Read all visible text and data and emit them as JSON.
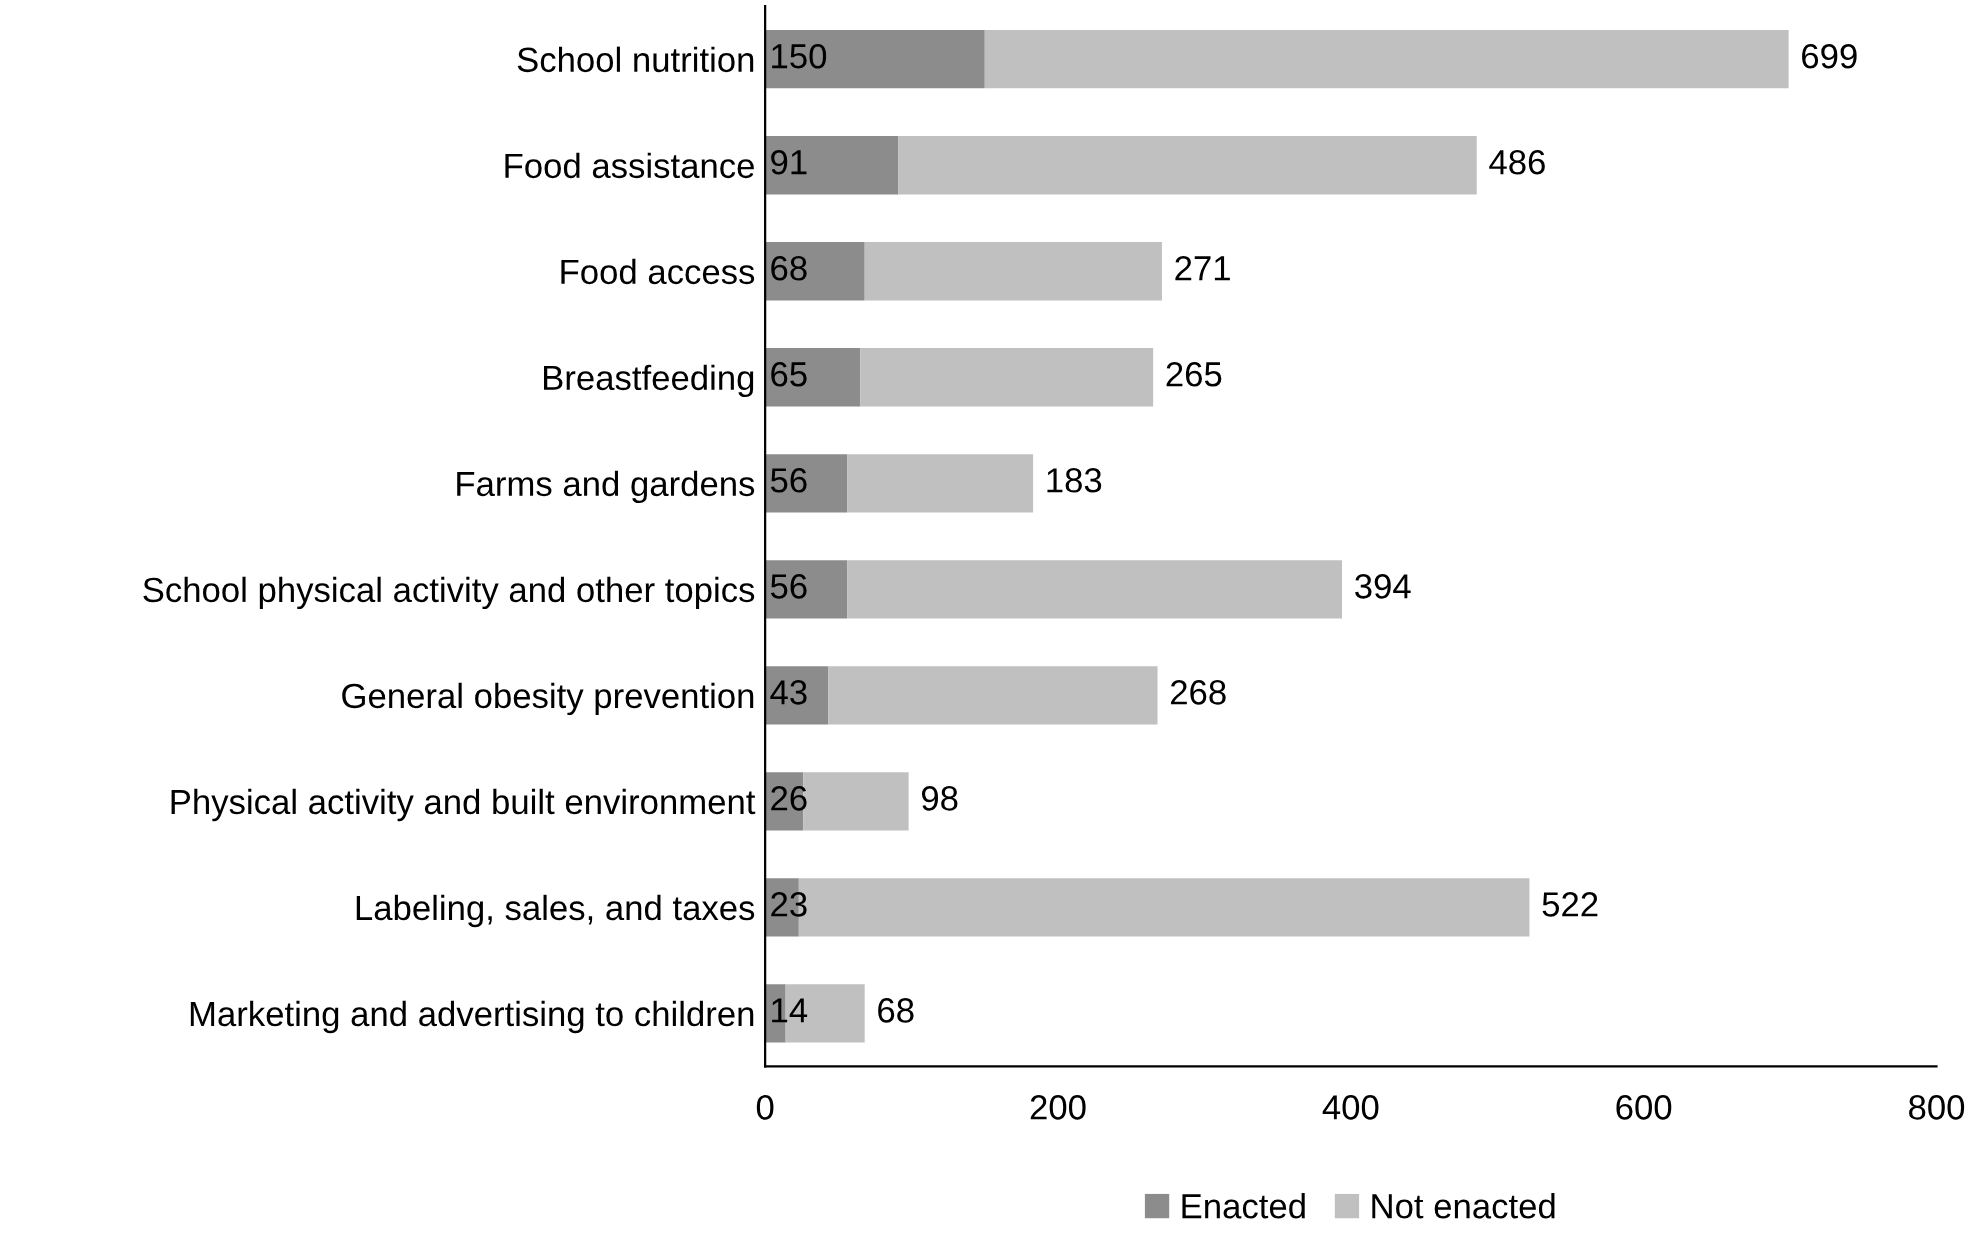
{
  "chart_data": {
    "type": "bar",
    "orientation": "horizontal",
    "stacked": true,
    "categories": [
      "School nutrition",
      "Food assistance",
      "Food access",
      "Breastfeeding",
      "Farms and gardens",
      "School physical activity and other topics",
      "General obesity prevention",
      "Physical activity and built environment",
      "Labeling, sales, and taxes",
      "Marketing and advertising to children"
    ],
    "series": [
      {
        "name": "Enacted",
        "color": "#8c8c8c",
        "values": [
          150,
          91,
          68,
          65,
          56,
          56,
          43,
          26,
          23,
          14
        ],
        "data_labels": true
      },
      {
        "name": "Not enacted",
        "color": "#c0c0c0",
        "values": [
          549,
          395,
          203,
          200,
          127,
          338,
          225,
          72,
          499,
          54
        ]
      }
    ],
    "totals": [
      "699",
      "486",
      "271",
      "265",
      "183",
      "394",
      "268",
      "98",
      "522",
      "68"
    ],
    "xlim": [
      0,
      800
    ],
    "xticks": [
      0,
      200,
      400,
      600,
      800
    ],
    "grid": false,
    "legend": "bottom"
  }
}
